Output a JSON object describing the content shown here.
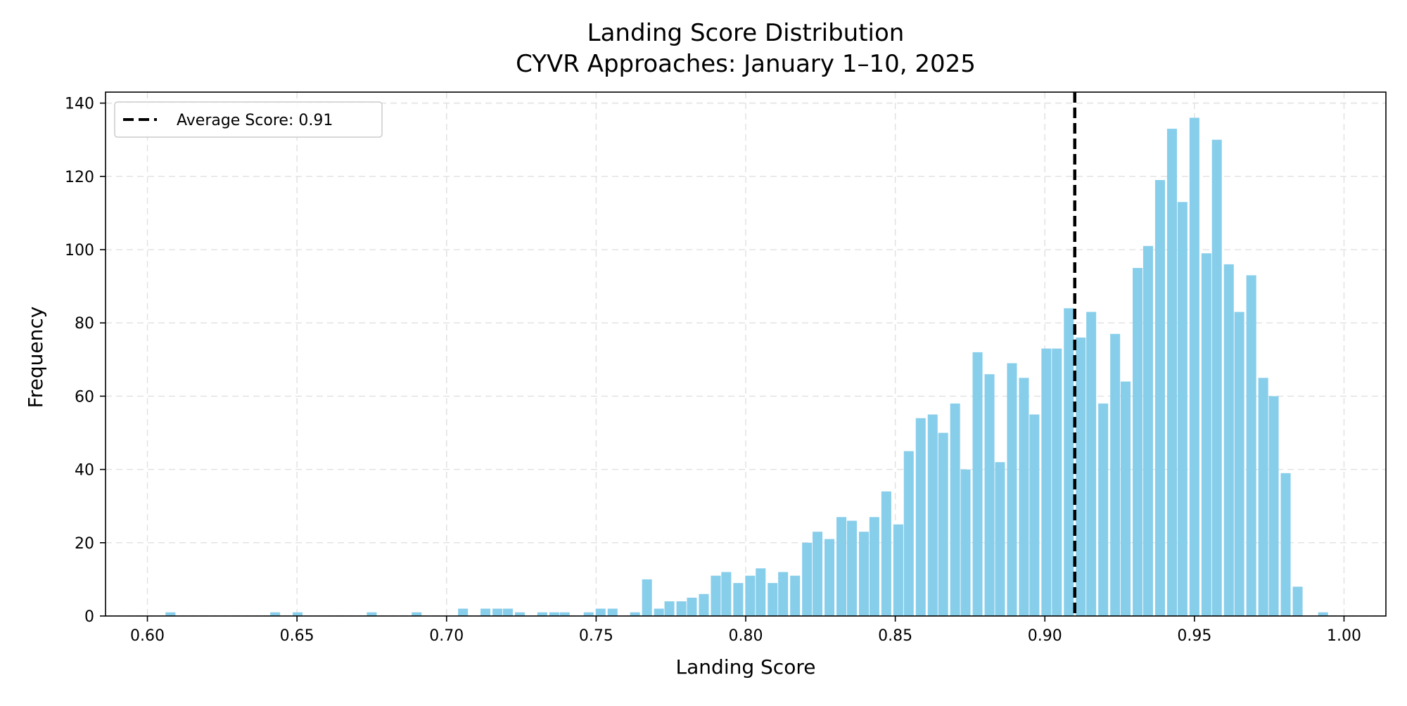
{
  "chart_data": {
    "type": "bar",
    "title_line1": "Landing Score Distribution",
    "title_line2": "CYVR Approaches: January 1–10, 2025",
    "xlabel": "Landing Score",
    "ylabel": "Frequency",
    "xlim": [
      0.586,
      1.014
    ],
    "ylim": [
      0,
      143
    ],
    "x_ticks": [
      0.6,
      0.65,
      0.7,
      0.75,
      0.8,
      0.85,
      0.9,
      0.95,
      1.0
    ],
    "x_tick_labels": [
      "0.60",
      "0.65",
      "0.70",
      "0.75",
      "0.80",
      "0.85",
      "0.90",
      "0.95",
      "1.00"
    ],
    "y_ticks": [
      0,
      20,
      40,
      60,
      80,
      100,
      120,
      140
    ],
    "y_tick_labels": [
      "0",
      "20",
      "40",
      "60",
      "80",
      "100",
      "120",
      "140"
    ],
    "grid": true,
    "legend_position": "top-left",
    "bin_start": 0.6,
    "bin_width": 0.0035,
    "bin_values": [
      0,
      0,
      1,
      0,
      0,
      0,
      0,
      0,
      0,
      0,
      0,
      0,
      0,
      0,
      0,
      0,
      0,
      0,
      0,
      0,
      0,
      0,
      0,
      0,
      0,
      0,
      0,
      0,
      0,
      0,
      0,
      0,
      0,
      0,
      0,
      0,
      0,
      0,
      0,
      0,
      0,
      0,
      0,
      0,
      0,
      0,
      0,
      0,
      0,
      0,
      0,
      0,
      0,
      0,
      0,
      0,
      0,
      0,
      0,
      0,
      0,
      0,
      0,
      0,
      0,
      0,
      0,
      0,
      0,
      0,
      0,
      0,
      0,
      0,
      0,
      0,
      0,
      0,
      0,
      0,
      0,
      0,
      0,
      0,
      0,
      0,
      0,
      0,
      0,
      0,
      0,
      0,
      0,
      0,
      0,
      0,
      0,
      0,
      0,
      0,
      0,
      0,
      0,
      0,
      0,
      0,
      0,
      0,
      0,
      0,
      0,
      0,
      0,
      0,
      0,
      0
    ],
    "bins": [
      {
        "x": 0.6077,
        "y": 1
      },
      {
        "x": 0.6427,
        "y": 1
      },
      {
        "x": 0.6502,
        "y": 1
      },
      {
        "x": 0.675,
        "y": 1
      },
      {
        "x": 0.69,
        "y": 1
      },
      {
        "x": 0.7055,
        "y": 2
      },
      {
        "x": 0.713,
        "y": 2
      },
      {
        "x": 0.717,
        "y": 2
      },
      {
        "x": 0.7205,
        "y": 2
      },
      {
        "x": 0.7245,
        "y": 1
      },
      {
        "x": 0.732,
        "y": 1
      },
      {
        "x": 0.736,
        "y": 1
      },
      {
        "x": 0.7395,
        "y": 1
      },
      {
        "x": 0.7475,
        "y": 1
      },
      {
        "x": 0.7515,
        "y": 2
      },
      {
        "x": 0.7555,
        "y": 2
      },
      {
        "x": 0.763,
        "y": 1
      },
      {
        "x": 0.767,
        "y": 10
      },
      {
        "x": 0.771,
        "y": 2
      },
      {
        "x": 0.7745,
        "y": 4
      },
      {
        "x": 0.7785,
        "y": 4
      },
      {
        "x": 0.782,
        "y": 5
      },
      {
        "x": 0.786,
        "y": 6
      },
      {
        "x": 0.79,
        "y": 11
      },
      {
        "x": 0.7935,
        "y": 12
      },
      {
        "x": 0.7975,
        "y": 9
      },
      {
        "x": 0.8015,
        "y": 11
      },
      {
        "x": 0.805,
        "y": 13
      },
      {
        "x": 0.809,
        "y": 9
      },
      {
        "x": 0.8125,
        "y": 12
      },
      {
        "x": 0.8165,
        "y": 11
      },
      {
        "x": 0.8205,
        "y": 20
      },
      {
        "x": 0.824,
        "y": 23
      },
      {
        "x": 0.828,
        "y": 21
      },
      {
        "x": 0.832,
        "y": 27
      },
      {
        "x": 0.8355,
        "y": 26
      },
      {
        "x": 0.8395,
        "y": 23
      },
      {
        "x": 0.843,
        "y": 27
      },
      {
        "x": 0.847,
        "y": 34
      },
      {
        "x": 0.851,
        "y": 25
      },
      {
        "x": 0.8545,
        "y": 45
      },
      {
        "x": 0.8585,
        "y": 54
      },
      {
        "x": 0.8625,
        "y": 55
      },
      {
        "x": 0.866,
        "y": 50
      },
      {
        "x": 0.87,
        "y": 58
      },
      {
        "x": 0.8735,
        "y": 40
      },
      {
        "x": 0.8775,
        "y": 72
      },
      {
        "x": 0.8815,
        "y": 66
      },
      {
        "x": 0.885,
        "y": 42
      },
      {
        "x": 0.889,
        "y": 69
      },
      {
        "x": 0.893,
        "y": 65
      },
      {
        "x": 0.8965,
        "y": 55
      },
      {
        "x": 0.9005,
        "y": 73
      },
      {
        "x": 0.904,
        "y": 73
      },
      {
        "x": 0.908,
        "y": 84
      },
      {
        "x": 0.912,
        "y": 76
      },
      {
        "x": 0.9155,
        "y": 83
      },
      {
        "x": 0.9195,
        "y": 58
      },
      {
        "x": 0.9235,
        "y": 77
      },
      {
        "x": 0.927,
        "y": 64
      },
      {
        "x": 0.931,
        "y": 95
      },
      {
        "x": 0.9345,
        "y": 101
      },
      {
        "x": 0.9385,
        "y": 119
      },
      {
        "x": 0.9425,
        "y": 133
      },
      {
        "x": 0.946,
        "y": 113
      },
      {
        "x": 0.95,
        "y": 136
      },
      {
        "x": 0.954,
        "y": 99
      },
      {
        "x": 0.9575,
        "y": 130
      },
      {
        "x": 0.9615,
        "y": 96
      },
      {
        "x": 0.965,
        "y": 83
      },
      {
        "x": 0.969,
        "y": 93
      },
      {
        "x": 0.973,
        "y": 65
      },
      {
        "x": 0.9765,
        "y": 60
      },
      {
        "x": 0.9805,
        "y": 39
      },
      {
        "x": 0.9845,
        "y": 8
      },
      {
        "x": 0.993,
        "y": 1
      }
    ],
    "bar_width": 0.0033,
    "bar_color": "#87ceeb",
    "average_line": {
      "x": 0.91,
      "color": "#000000",
      "style": "dashed"
    },
    "legend_entries": [
      {
        "label": "Average Score: 0.91"
      }
    ]
  }
}
